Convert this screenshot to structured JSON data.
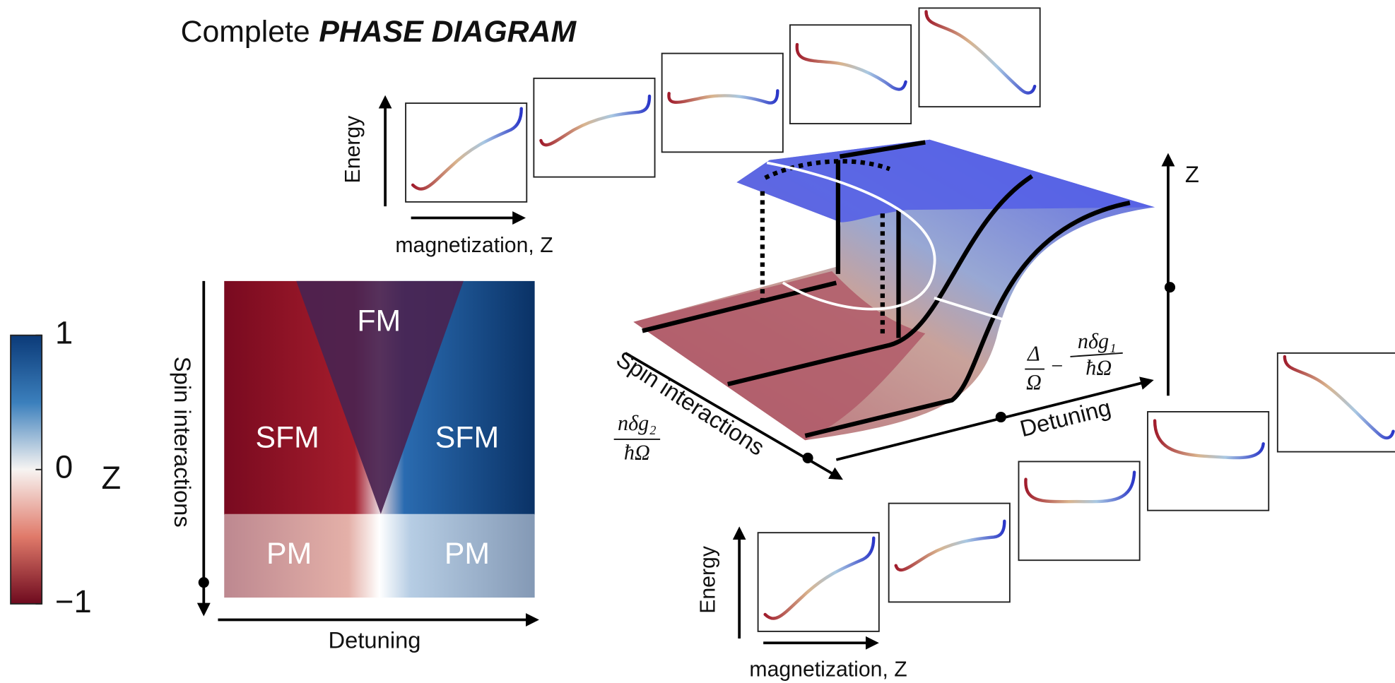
{
  "title": {
    "lead": "Complete",
    "emphasis": "PHASE DIAGRAM"
  },
  "top_axes": {
    "y_label": "Energy",
    "x_label": "magnetization, Z"
  },
  "bottom_axes": {
    "y_label": "Energy",
    "x_label": "magnetization, Z"
  },
  "colorbar": {
    "label": "Z",
    "ticks": [
      1,
      0,
      {
        "value": -1,
        "label": "−1"
      }
    ]
  },
  "phase_map": {
    "y_label": "Spin interactions",
    "x_label": "Detuning",
    "regions": [
      "FM",
      "SFM",
      "SFM",
      "PM",
      "PM"
    ]
  },
  "surface": {
    "z_label": "Z",
    "y_label": "Spin interactions",
    "x_label": "Detuning",
    "x_formula": {
      "numerator_1": "Δ",
      "denominator_1": "Ω",
      "operator": "−",
      "numerator_2": "nδg₁",
      "denominator_2": "ħΩ"
    },
    "y_formula": {
      "numerator": "nδg₂",
      "denominator": "ħΩ"
    }
  }
}
